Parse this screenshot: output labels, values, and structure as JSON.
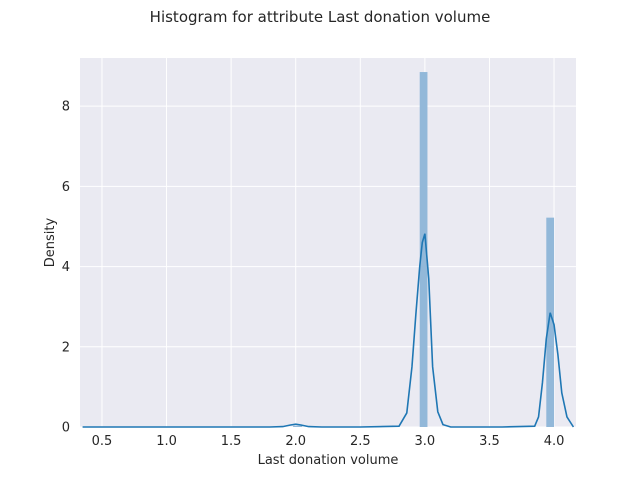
{
  "chart_data": {
    "type": "histogram",
    "title": "Histogram for attribute Last donation volume",
    "xlabel": "Last donation volume",
    "ylabel": "Density",
    "xlim": [
      0.33,
      4.17
    ],
    "ylim": [
      0,
      9.2
    ],
    "x_ticks": [
      "0.5",
      "1.0",
      "1.5",
      "2.0",
      "2.5",
      "3.0",
      "3.5",
      "4.0"
    ],
    "y_ticks": [
      "0",
      "2",
      "4",
      "6",
      "8"
    ],
    "grid": true,
    "background_color": "#eaeaf2",
    "bar_color": "#92b8d9",
    "line_color": "#1f77b4",
    "bars": [
      {
        "x_start": 1.98,
        "x_end": 2.05,
        "density": 0.03
      },
      {
        "x_start": 2.96,
        "x_end": 3.02,
        "density": 8.85
      },
      {
        "x_start": 3.94,
        "x_end": 4.0,
        "density": 5.22
      }
    ],
    "kde": {
      "x": [
        0.35,
        0.6,
        0.9,
        1.2,
        1.5,
        1.8,
        1.9,
        1.96,
        2.0,
        2.04,
        2.1,
        2.2,
        2.5,
        2.8,
        2.86,
        2.9,
        2.93,
        2.96,
        2.98,
        3.0,
        3.03,
        3.06,
        3.1,
        3.14,
        3.2,
        3.3,
        3.6,
        3.85,
        3.88,
        3.91,
        3.94,
        3.97,
        4.0,
        4.03,
        4.06,
        4.1,
        4.15
      ],
      "y": [
        0.0,
        0.0,
        0.0,
        0.0,
        0.0,
        0.0,
        0.01,
        0.05,
        0.07,
        0.05,
        0.01,
        0.0,
        0.0,
        0.02,
        0.35,
        1.5,
        2.8,
        4.0,
        4.6,
        4.82,
        3.7,
        1.5,
        0.38,
        0.06,
        0.0,
        0.0,
        0.0,
        0.02,
        0.25,
        1.1,
        2.2,
        2.85,
        2.55,
        1.8,
        0.85,
        0.25,
        0.0
      ]
    }
  }
}
